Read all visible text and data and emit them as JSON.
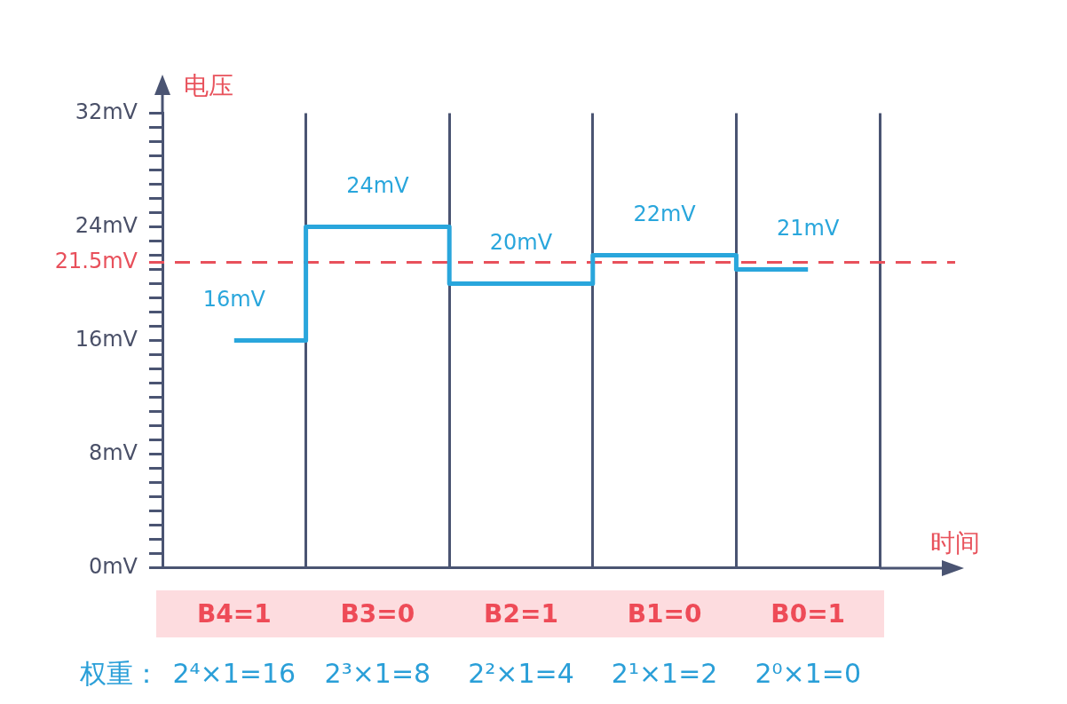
{
  "chart_data": {
    "type": "step",
    "categories": [
      "B4=1",
      "B3=0",
      "B2=1",
      "B1=0",
      "B0=1"
    ],
    "values": [
      16,
      24,
      20,
      22,
      21
    ],
    "color": "#29a6dc",
    "value_labels": [
      "16mV",
      "24mV",
      "20mV",
      "22mV",
      "21mV"
    ],
    "xlabel": "时间",
    "ylabel": "电压",
    "ylim": [
      0,
      32
    ],
    "yticks": [
      {
        "value": 0,
        "label": "0mV"
      },
      {
        "value": 1,
        "label": null
      },
      {
        "value": 2,
        "label": null
      },
      {
        "value": 3,
        "label": null
      },
      {
        "value": 4,
        "label": null
      },
      {
        "value": 5,
        "label": null
      },
      {
        "value": 6,
        "label": null
      },
      {
        "value": 7,
        "label": null
      },
      {
        "value": 8,
        "label": "8mV"
      },
      {
        "value": 9,
        "label": null
      },
      {
        "value": 10,
        "label": null
      },
      {
        "value": 11,
        "label": null
      },
      {
        "value": 12,
        "label": null
      },
      {
        "value": 13,
        "label": null
      },
      {
        "value": 14,
        "label": null
      },
      {
        "value": 15,
        "label": null
      },
      {
        "value": 16,
        "label": "16mV"
      },
      {
        "value": 17,
        "label": null
      },
      {
        "value": 18,
        "label": null
      },
      {
        "value": 19,
        "label": null
      },
      {
        "value": 20,
        "label": null
      },
      {
        "value": 21,
        "label": null
      },
      {
        "value": 22,
        "label": null
      },
      {
        "value": 23,
        "label": null
      },
      {
        "value": 24,
        "label": "24mV"
      },
      {
        "value": 25,
        "label": null
      },
      {
        "value": 26,
        "label": null
      },
      {
        "value": 27,
        "label": null
      },
      {
        "value": 28,
        "label": null
      },
      {
        "value": 29,
        "label": null
      },
      {
        "value": 30,
        "label": null
      },
      {
        "value": 31,
        "label": null
      },
      {
        "value": 32,
        "label": "32mV"
      }
    ],
    "grid": "x",
    "ref_lines": [
      {
        "axis": "y",
        "value": 21.5,
        "label": "21.5mV",
        "color": "#e8505b",
        "line_style": "dashed"
      }
    ],
    "annotations": [
      "权重：",
      "2⁴×1=16",
      "2³×1=8",
      "2²×1=4",
      "2¹×1=2",
      "2⁰×1=0"
    ]
  }
}
